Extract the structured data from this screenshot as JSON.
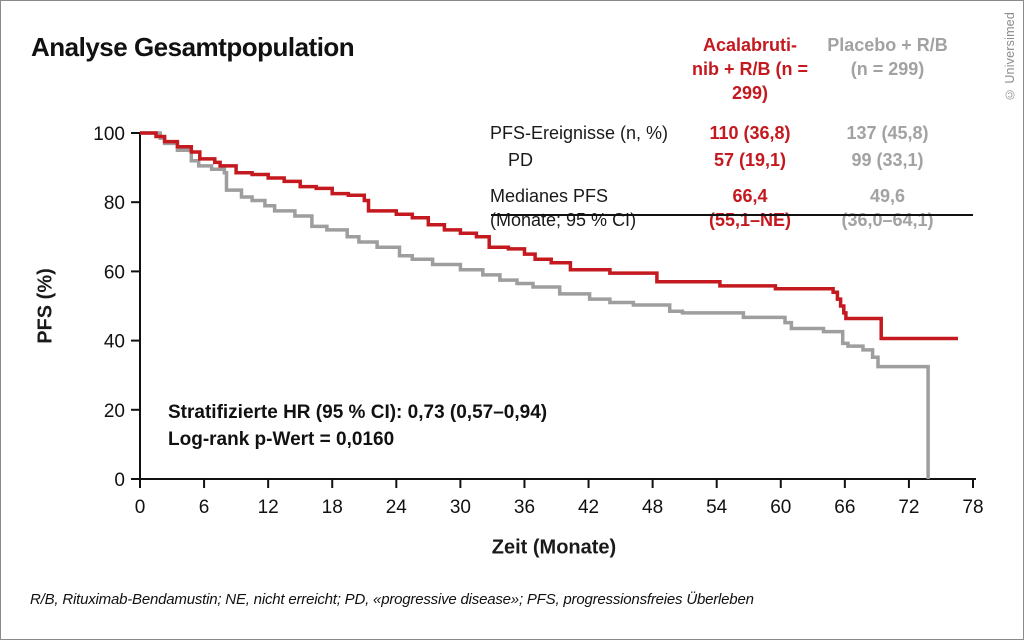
{
  "header": {
    "title": "Analyse Gesamtpopulation",
    "copyright": "© Universimed"
  },
  "colors": {
    "accent_red": "#c3191f",
    "gray": "#a2a2a2",
    "axis_ink": "#111111"
  },
  "summary_table": {
    "columns": [
      {
        "line1": "Acalabruti-",
        "line2": "nib + R/B (n = 299)",
        "color": "#c3191f"
      },
      {
        "line1": "Placebo + R/B",
        "line2": "(n = 299)",
        "color": "#a2a2a2"
      }
    ],
    "rows": [
      {
        "label": "PFS-Ereignisse (n, %)",
        "acala": "110 (36,8)",
        "placebo": "137 (45,8)"
      },
      {
        "label": "PD",
        "acala": "57 (19,1)",
        "placebo": "99 (33,1)"
      },
      {
        "label_line1": "Medianes PFS",
        "label_line2": "(Monate; 95 % CI)",
        "acala_line1": "66,4",
        "acala_line2": "(55,1–NE)",
        "placebo_line1": "49,6",
        "placebo_line2": "(36,0–64,1)"
      }
    ]
  },
  "footnote": "R/B, Rituximab-Bendamustin; NE, nicht erreicht; PD, «progressive disease»; PFS, progressionsfreies Überleben",
  "chart_data": {
    "type": "line",
    "subtype": "kaplan-meier-step",
    "title": "Analyse Gesamtpopulation",
    "xlabel": "Zeit (Monate)",
    "ylabel": "PFS (%)",
    "xlim": [
      0,
      78
    ],
    "ylim": [
      0,
      100
    ],
    "xticks": [
      0,
      6,
      12,
      18,
      24,
      30,
      36,
      42,
      48,
      54,
      60,
      66,
      72,
      78
    ],
    "yticks": [
      0,
      20,
      40,
      60,
      80,
      100
    ],
    "grid": false,
    "legend_position": "table-top-right",
    "annotations": {
      "hr": "Stratifizierte HR (95 % CI): 0,73 (0,57–0,94)",
      "logrank": "Log-rank p-Wert = 0,0160"
    },
    "stats": {
      "acalabrutinib_rb": {
        "n": 299,
        "pfs_events": "110 (36,8)",
        "pd": "57 (19,1)",
        "median_pfs": "66,4 (55,1–NE)"
      },
      "placebo_rb": {
        "n": 299,
        "pfs_events": "137 (45,8)",
        "pd": "99 (33,1)",
        "median_pfs": "49,6 (36,0–64,1)"
      }
    },
    "series": [
      {
        "name": "Acalabrutinib + R/B",
        "color": "#c3191f",
        "end_x": 76.6,
        "steps": [
          [
            0,
            100
          ],
          [
            1.5,
            99
          ],
          [
            2.3,
            97.5
          ],
          [
            3.5,
            96
          ],
          [
            4.8,
            94.5
          ],
          [
            5.6,
            92.5
          ],
          [
            7,
            91.5
          ],
          [
            7.5,
            90.5
          ],
          [
            9,
            88.5
          ],
          [
            10.5,
            88
          ],
          [
            12,
            87
          ],
          [
            13.5,
            86
          ],
          [
            15,
            84.5
          ],
          [
            16.5,
            84
          ],
          [
            18,
            82.5
          ],
          [
            19.5,
            82
          ],
          [
            21,
            80.5
          ],
          [
            21.4,
            77.5
          ],
          [
            24,
            76.5
          ],
          [
            25.5,
            75.5
          ],
          [
            27,
            73.5
          ],
          [
            28.5,
            72
          ],
          [
            30,
            71
          ],
          [
            31.5,
            70
          ],
          [
            32.7,
            67
          ],
          [
            34.5,
            66.5
          ],
          [
            36,
            65
          ],
          [
            37,
            63.5
          ],
          [
            38.5,
            62.5
          ],
          [
            40.3,
            60.5
          ],
          [
            44,
            59.5
          ],
          [
            48.4,
            57
          ],
          [
            54.3,
            55.8
          ],
          [
            59.5,
            55
          ],
          [
            64.9,
            54
          ],
          [
            65.3,
            52
          ],
          [
            65.6,
            50
          ],
          [
            65.9,
            48
          ],
          [
            66.1,
            46.4
          ],
          [
            69.4,
            40.6
          ]
        ]
      },
      {
        "name": "Placebo + R/B",
        "color": "#9e9e9e",
        "end_x": null,
        "steps": [
          [
            0,
            100
          ],
          [
            1.9,
            98.5
          ],
          [
            2.3,
            97
          ],
          [
            3.5,
            95
          ],
          [
            4.8,
            92
          ],
          [
            5.5,
            90.5
          ],
          [
            6.7,
            89.5
          ],
          [
            7.9,
            88.5
          ],
          [
            8.1,
            83.5
          ],
          [
            9.5,
            81.5
          ],
          [
            10.5,
            80.5
          ],
          [
            11.7,
            79
          ],
          [
            12.6,
            77.5
          ],
          [
            14.5,
            76
          ],
          [
            16.1,
            73
          ],
          [
            17.5,
            72
          ],
          [
            19.4,
            70
          ],
          [
            20.5,
            68.5
          ],
          [
            22.2,
            67
          ],
          [
            24.3,
            64.5
          ],
          [
            25.5,
            63.5
          ],
          [
            27.4,
            62
          ],
          [
            30,
            60.5
          ],
          [
            32.1,
            59
          ],
          [
            33.7,
            57.5
          ],
          [
            35.3,
            56.5
          ],
          [
            36.8,
            55.5
          ],
          [
            39.3,
            53.5
          ],
          [
            42.1,
            52
          ],
          [
            44,
            51
          ],
          [
            46.2,
            50.3
          ],
          [
            49.6,
            48.5
          ],
          [
            50.8,
            48
          ],
          [
            56.5,
            46.7
          ],
          [
            60.4,
            45.2
          ],
          [
            61,
            43.5
          ],
          [
            64,
            42.6
          ],
          [
            65.8,
            39.2
          ],
          [
            66.3,
            38.4
          ],
          [
            67.7,
            37.3
          ],
          [
            68.6,
            35.2
          ],
          [
            69.1,
            32.5
          ],
          [
            73.8,
            0
          ]
        ]
      }
    ]
  }
}
